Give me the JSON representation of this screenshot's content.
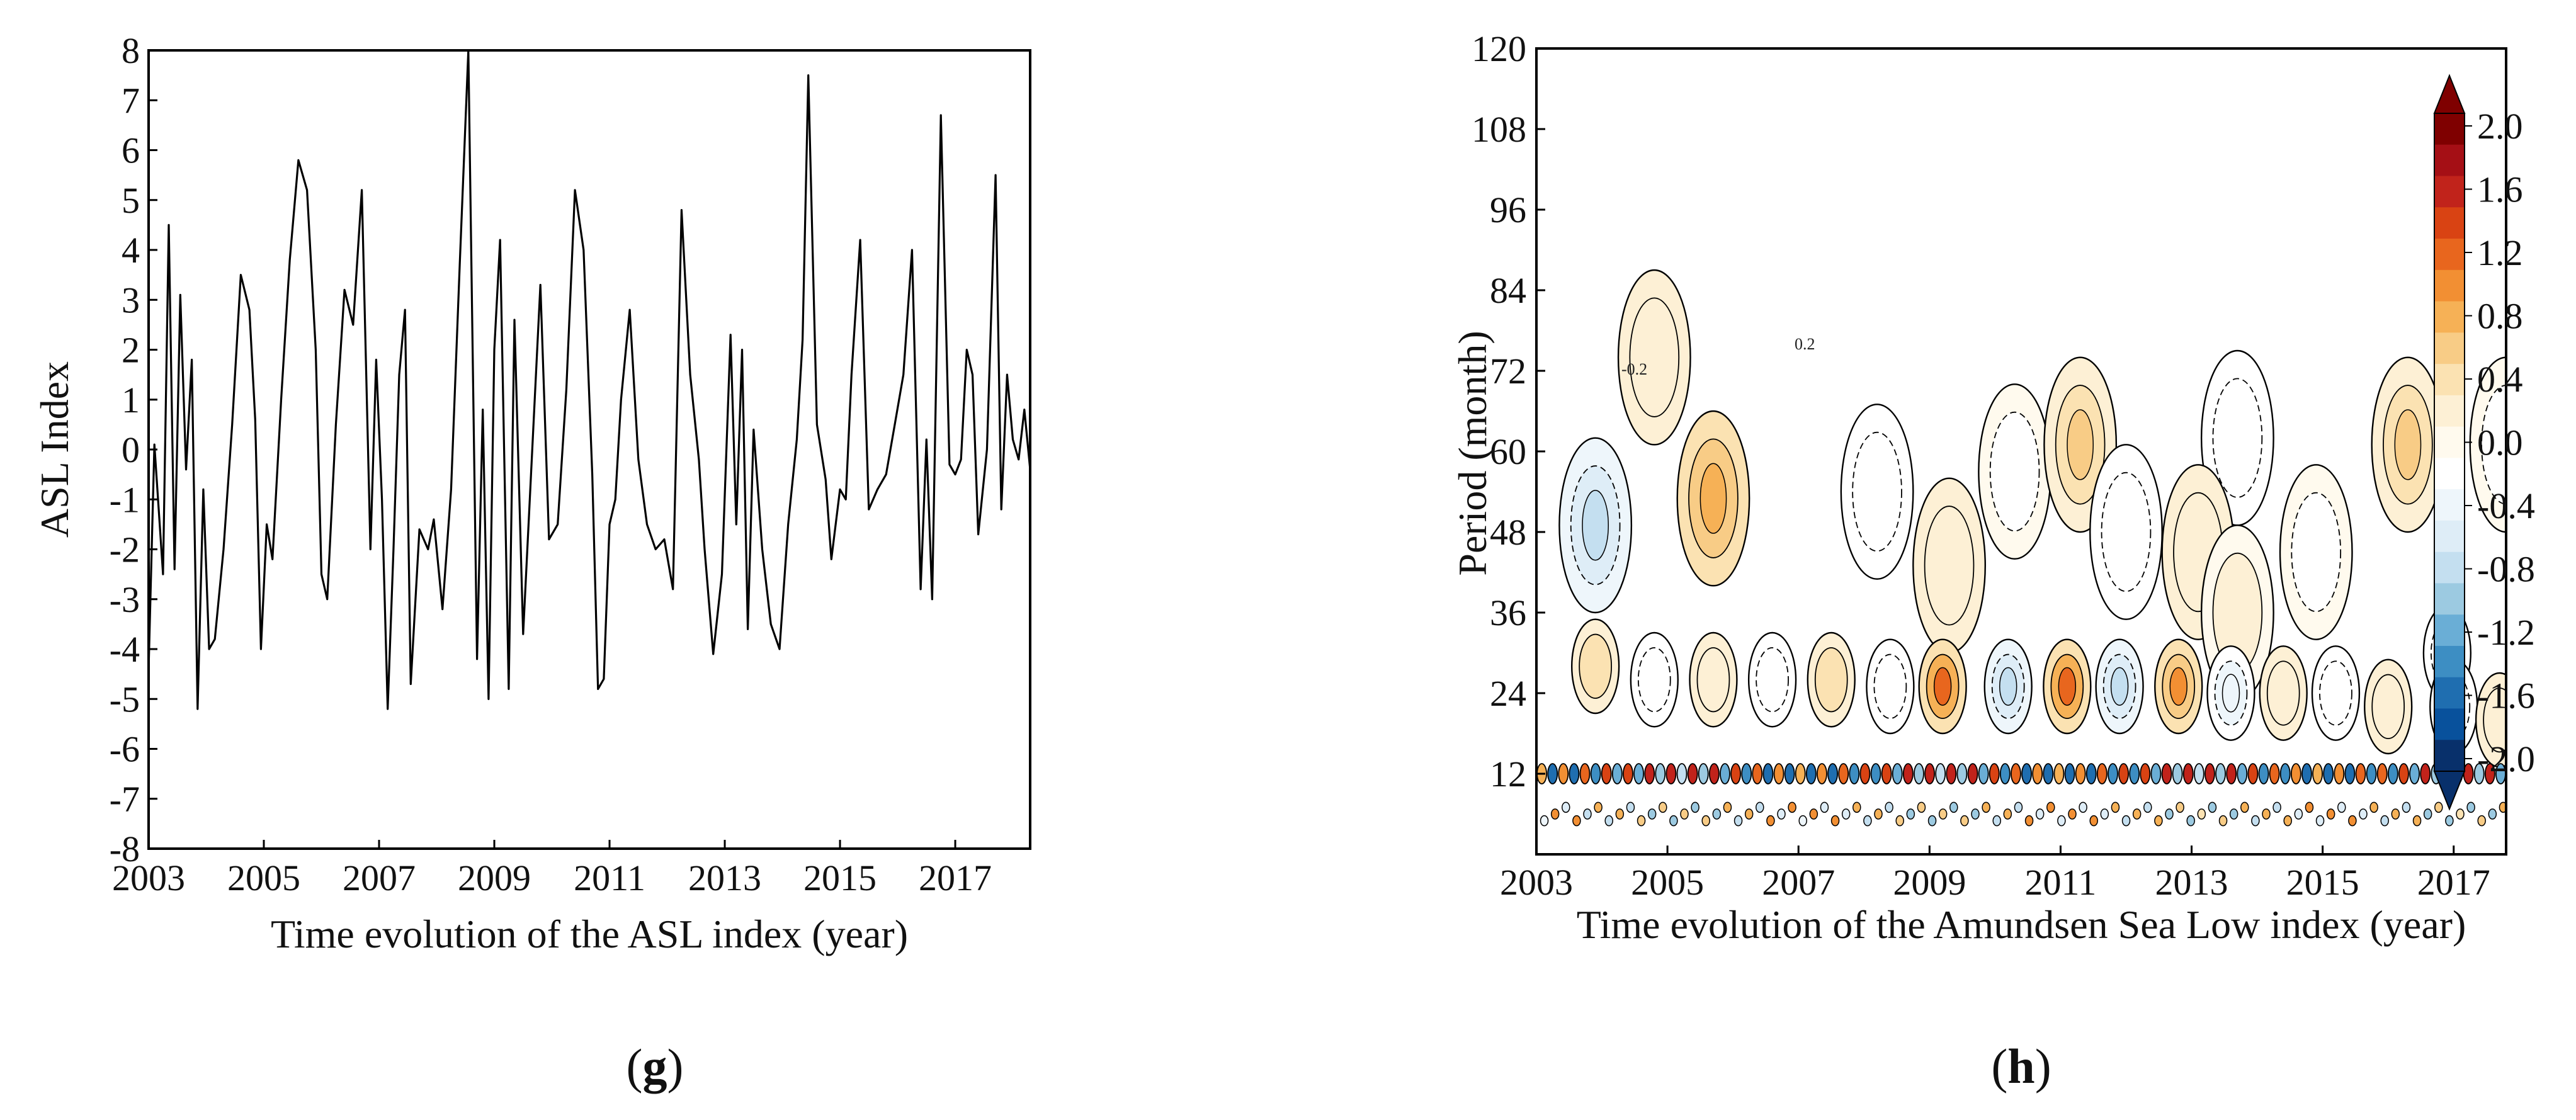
{
  "chart_data": [
    {
      "type": "line",
      "panel_label": "g",
      "xlabel": "Time evolution of the ASL index (year)",
      "ylabel": "ASL Index",
      "xlim": [
        2003,
        2018.3
      ],
      "ylim": [
        -8,
        8
      ],
      "xticks": [
        2003,
        2005,
        2007,
        2009,
        2011,
        2013,
        2015,
        2017
      ],
      "yticks": [
        8,
        7,
        6,
        5,
        4,
        3,
        2,
        1,
        0,
        -1,
        -2,
        -3,
        -4,
        -5,
        -6,
        -7,
        -8
      ],
      "series": [
        {
          "name": "ASL index",
          "color": "#000000",
          "x": [
            2003.0,
            2003.1,
            2003.25,
            2003.35,
            2003.45,
            2003.55,
            2003.65,
            2003.75,
            2003.85,
            2003.95,
            2004.05,
            2004.15,
            2004.3,
            2004.45,
            2004.6,
            2004.75,
            2004.85,
            2004.95,
            2005.05,
            2005.15,
            2005.3,
            2005.45,
            2005.6,
            2005.75,
            2005.9,
            2006.0,
            2006.1,
            2006.25,
            2006.4,
            2006.55,
            2006.7,
            2006.85,
            2006.95,
            2007.05,
            2007.15,
            2007.25,
            2007.35,
            2007.45,
            2007.55,
            2007.7,
            2007.85,
            2007.95,
            2008.1,
            2008.25,
            2008.4,
            2008.55,
            2008.7,
            2008.8,
            2008.9,
            2009.0,
            2009.1,
            2009.25,
            2009.35,
            2009.5,
            2009.65,
            2009.8,
            2009.95,
            2010.1,
            2010.25,
            2010.4,
            2010.55,
            2010.7,
            2010.8,
            2010.9,
            2011.0,
            2011.1,
            2011.2,
            2011.35,
            2011.5,
            2011.65,
            2011.8,
            2011.95,
            2012.1,
            2012.25,
            2012.4,
            2012.55,
            2012.65,
            2012.8,
            2012.95,
            2013.1,
            2013.2,
            2013.3,
            2013.4,
            2013.5,
            2013.65,
            2013.8,
            2013.95,
            2014.1,
            2014.25,
            2014.35,
            2014.45,
            2014.6,
            2014.75,
            2014.85,
            2015.0,
            2015.1,
            2015.2,
            2015.35,
            2015.5,
            2015.65,
            2015.8,
            2015.95,
            2016.1,
            2016.25,
            2016.4,
            2016.5,
            2016.6,
            2016.75,
            2016.9,
            2017.0,
            2017.1,
            2017.2,
            2017.3,
            2017.4,
            2017.55,
            2017.7,
            2017.8,
            2017.9,
            2018.0,
            2018.1,
            2018.2,
            2018.3
          ],
          "y": [
            -4.4,
            0.1,
            -2.5,
            4.5,
            -2.4,
            3.1,
            -0.4,
            1.8,
            -5.2,
            -0.8,
            -4.0,
            -3.8,
            -2.0,
            0.5,
            3.5,
            2.8,
            0.6,
            -4.0,
            -1.5,
            -2.2,
            1.0,
            3.8,
            5.8,
            5.2,
            2.0,
            -2.5,
            -3.0,
            0.5,
            3.2,
            2.5,
            5.2,
            -2.0,
            1.8,
            -1.0,
            -5.2,
            -2.0,
            1.5,
            2.8,
            -4.7,
            -1.6,
            -2.0,
            -1.4,
            -3.2,
            -0.8,
            3.7,
            8.0,
            -4.2,
            0.8,
            -5.0,
            2.0,
            4.2,
            -4.8,
            2.6,
            -3.7,
            -0.2,
            3.3,
            -1.8,
            -1.5,
            1.2,
            5.2,
            4.0,
            -0.5,
            -4.8,
            -4.6,
            -1.5,
            -1.0,
            1.0,
            2.8,
            -0.2,
            -1.5,
            -2.0,
            -1.8,
            -2.8,
            4.8,
            1.5,
            -0.2,
            -2.0,
            -4.1,
            -2.5,
            2.3,
            -1.5,
            2.0,
            -3.6,
            0.4,
            -2.0,
            -3.5,
            -4.0,
            -1.5,
            0.2,
            2.2,
            7.5,
            0.5,
            -0.6,
            -2.2,
            -0.8,
            -1.0,
            1.5,
            4.2,
            -1.2,
            -0.8,
            -0.5,
            0.5,
            1.5,
            4.0,
            -2.8,
            0.2,
            -3.0,
            6.7,
            -0.3,
            -0.5,
            -0.2,
            2.0,
            1.5,
            -1.7,
            0.0,
            5.5,
            -1.2,
            1.5,
            0.2,
            -0.2,
            0.8,
            -0.4
          ]
        }
      ]
    },
    {
      "type": "heatmap",
      "panel_label": "h",
      "subtype": "wavelet contour",
      "xlabel": "Time evolution of the Amundsen Sea Low index (year)",
      "ylabel": "Period (month)",
      "xlim": [
        2003,
        2017.8
      ],
      "ylim": [
        0,
        120
      ],
      "xticks": [
        2003,
        2005,
        2007,
        2009,
        2011,
        2013,
        2015,
        2017
      ],
      "yticks": [
        120,
        108,
        96,
        84,
        72,
        60,
        48,
        36,
        24,
        12
      ],
      "contour_label": "0.2",
      "contour_label_neg": "-0.2",
      "colorbar": {
        "min": -2.0,
        "max": 2.0,
        "ticks": [
          "2.0",
          "1.6",
          "1.2",
          "0.8",
          "0.4",
          "0.0",
          "-0.4",
          "-0.8",
          "-1.2",
          "-1.6",
          "-2.0"
        ],
        "colors": [
          "#08306b",
          "#08519c",
          "#1f6eb0",
          "#3d8ec3",
          "#6aaed6",
          "#9ccae1",
          "#c4dff0",
          "#deedf7",
          "#eef6fb",
          "#ffffff",
          "#fffaee",
          "#fdf0d5",
          "#fbe2b2",
          "#f8cc86",
          "#f6b156",
          "#f28f33",
          "#e8661e",
          "#d94313",
          "#c1231b",
          "#a50f15",
          "#7f0000"
        ]
      },
      "cells": [
        {
          "t": 2003.9,
          "p": 49,
          "v": -0.9
        },
        {
          "t": 2005.7,
          "p": 53,
          "v": 0.7
        },
        {
          "t": 2004.8,
          "p": 74,
          "v": 0.3
        },
        {
          "t": 2008.2,
          "p": 54,
          "v": -0.3
        },
        {
          "t": 2009.3,
          "p": 43,
          "v": 0.3
        },
        {
          "t": 2010.3,
          "p": 57,
          "v": -0.2
        },
        {
          "t": 2011.3,
          "p": 61,
          "v": 0.5
        },
        {
          "t": 2012.0,
          "p": 48,
          "v": -0.3
        },
        {
          "t": 2013.7,
          "p": 62,
          "v": -0.3
        },
        {
          "t": 2013.1,
          "p": 45,
          "v": 0.3
        },
        {
          "t": 2016.3,
          "p": 61,
          "v": 0.5
        },
        {
          "t": 2014.9,
          "p": 45,
          "v": -0.2
        },
        {
          "t": 2017.8,
          "p": 61,
          "v": -0.2
        },
        {
          "t": 2013.7,
          "p": 36,
          "v": 0.2
        },
        {
          "t": 2016.9,
          "p": 30,
          "v": -0.3
        },
        {
          "t": 2003.9,
          "p": 28,
          "v": 0.4
        },
        {
          "t": 2004.8,
          "p": 26,
          "v": -0.4
        },
        {
          "t": 2005.7,
          "p": 26,
          "v": 0.3
        },
        {
          "t": 2006.6,
          "p": 26,
          "v": -0.3
        },
        {
          "t": 2007.5,
          "p": 26,
          "v": 0.4
        },
        {
          "t": 2008.4,
          "p": 25,
          "v": -0.4
        },
        {
          "t": 2009.2,
          "p": 25,
          "v": 1.1
        },
        {
          "t": 2010.2,
          "p": 25,
          "v": -0.9
        },
        {
          "t": 2011.1,
          "p": 25,
          "v": 1.1
        },
        {
          "t": 2011.9,
          "p": 25,
          "v": -0.8
        },
        {
          "t": 2012.8,
          "p": 25,
          "v": 0.9
        },
        {
          "t": 2013.6,
          "p": 24,
          "v": -0.5
        },
        {
          "t": 2014.4,
          "p": 24,
          "v": 0.3
        },
        {
          "t": 2015.2,
          "p": 24,
          "v": -0.3
        },
        {
          "t": 2016.0,
          "p": 22,
          "v": 0.3
        },
        {
          "t": 2017.0,
          "p": 22,
          "v": -0.3
        },
        {
          "t": 2017.7,
          "p": 20,
          "v": 0.3
        }
      ]
    }
  ]
}
